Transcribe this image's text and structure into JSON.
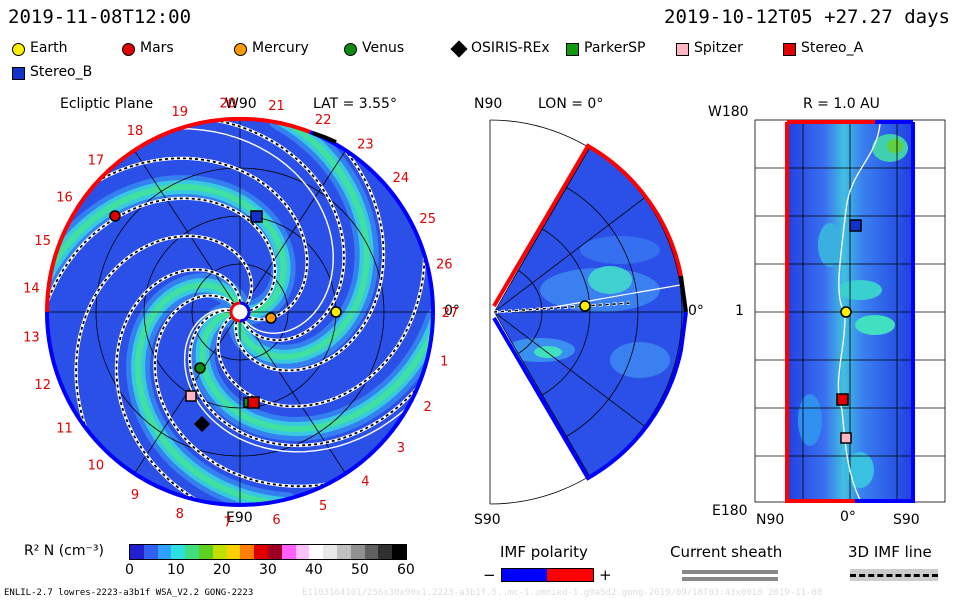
{
  "header": {
    "left_date": "2019-11-08T12:00",
    "right_date": "2019-10-12T05 +27.27 days"
  },
  "legend": [
    {
      "name": "Earth",
      "shape": "circle",
      "color": "#ffee00"
    },
    {
      "name": "Mars",
      "shape": "circle",
      "color": "#e00000"
    },
    {
      "name": "Mercury",
      "shape": "circle",
      "color": "#ff9900"
    },
    {
      "name": "Venus",
      "shape": "circle",
      "color": "#118811"
    },
    {
      "name": "OSIRIS-REx",
      "shape": "diamond",
      "color": "#000000"
    },
    {
      "name": "ParkerSP",
      "shape": "square",
      "color": "#119911"
    },
    {
      "name": "Spitzer",
      "shape": "square",
      "color": "#ffb6c1"
    },
    {
      "name": "Stereo_A",
      "shape": "square",
      "color": "#e00000"
    },
    {
      "name": "Stereo_B",
      "shape": "square",
      "color": "#1133cc"
    }
  ],
  "ecliptic": {
    "title": "Ecliptic Plane",
    "top_label": "W90",
    "lat_label": "LAT = 3.55°",
    "bottom_label": "E90",
    "zero_label": "0°",
    "numbers": [
      "19",
      "20",
      "21",
      "22",
      "23",
      "24",
      "25",
      "26",
      "27",
      "1",
      "2",
      "3",
      "4",
      "5",
      "6",
      "7",
      "8",
      "9",
      "10",
      "11",
      "12",
      "13",
      "14",
      "15",
      "16",
      "17",
      "18"
    ]
  },
  "meridional": {
    "top_label": "N90",
    "lon_label": "LON = 0°",
    "bottom_label": "S90",
    "zero_label": "0°"
  },
  "radial": {
    "r_label": "R = 1.0 AU",
    "top_label": "W180",
    "mid_label": "1",
    "bottom_label": "E180",
    "x_left": "N90",
    "x_mid": "0°",
    "x_right": "S90"
  },
  "colorbar": {
    "label": "R² N (cm⁻³)",
    "ticks": [
      "0",
      "10",
      "20",
      "30",
      "40",
      "50",
      "60"
    ],
    "colors": [
      "#2020d0",
      "#3060f0",
      "#30a0ff",
      "#30e0e0",
      "#40e080",
      "#60d020",
      "#c0e000",
      "#ffd000",
      "#ff8000",
      "#e00000",
      "#a00020",
      "#ff60ff",
      "#ffc0ff",
      "#ffffff",
      "#e8e8e8",
      "#c0c0c0",
      "#909090",
      "#606060",
      "#303030",
      "#000000"
    ]
  },
  "imf": {
    "title": "IMF polarity",
    "minus": "−",
    "plus": "+",
    "neg_color": "#0000ff",
    "pos_color": "#ff0000"
  },
  "sheath": {
    "title": "Current sheath"
  },
  "imf_line": {
    "title": "3D IMF line"
  },
  "footer": {
    "left": "ENLIL-2.7 lowres-2223-a3b1f WSA_V2.2 GONG-2223",
    "right": "E1103164101/256x30x90x1.2223-a3b1f.5..mc-1.umnied-1.g9a5d2.gong-2019/09/18T03:43x0010   2019-11-08"
  }
}
